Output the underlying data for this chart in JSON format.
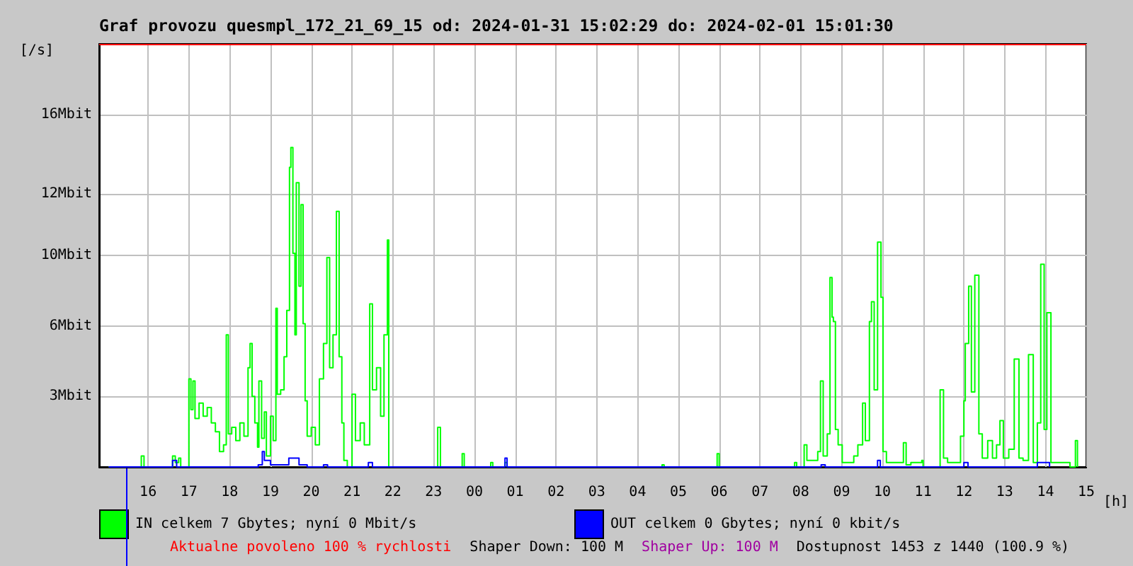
{
  "chart_data": {
    "type": "step",
    "title": "Graf provozu quesmpl_172_21_69_15 od: 2024-01-31 15:02:29 do: 2024-02-01 15:01:30",
    "xlabel": "[h]",
    "ylabel": "[/s]",
    "xlim": [
      "2024-01-31T14:48",
      "2024-02-01T15:00"
    ],
    "xticks": [
      {
        "value": "2024-01-31T16:00",
        "label": "16"
      },
      {
        "value": "2024-01-31T17:00",
        "label": "17"
      },
      {
        "value": "2024-01-31T18:00",
        "label": "18"
      },
      {
        "value": "2024-01-31T19:00",
        "label": "19"
      },
      {
        "value": "2024-01-31T20:00",
        "label": "20"
      },
      {
        "value": "2024-01-31T21:00",
        "label": "21"
      },
      {
        "value": "2024-01-31T22:00",
        "label": "22"
      },
      {
        "value": "2024-01-31T23:00",
        "label": "23"
      },
      {
        "value": "2024-02-01T00:00",
        "label": "00"
      },
      {
        "value": "2024-02-01T01:00",
        "label": "01"
      },
      {
        "value": "2024-02-01T02:00",
        "label": "02"
      },
      {
        "value": "2024-02-01T03:00",
        "label": "03"
      },
      {
        "value": "2024-02-01T04:00",
        "label": "04"
      },
      {
        "value": "2024-02-01T05:00",
        "label": "05"
      },
      {
        "value": "2024-02-01T06:00",
        "label": "06"
      },
      {
        "value": "2024-02-01T07:00",
        "label": "07"
      },
      {
        "value": "2024-02-01T08:00",
        "label": "08"
      },
      {
        "value": "2024-02-01T09:00",
        "label": "09"
      },
      {
        "value": "2024-02-01T10:00",
        "label": "10"
      },
      {
        "value": "2024-02-01T11:00",
        "label": "11"
      },
      {
        "value": "2024-02-01T12:00",
        "label": "12"
      },
      {
        "value": "2024-02-01T13:00",
        "label": "13"
      },
      {
        "value": "2024-02-01T14:00",
        "label": "14"
      },
      {
        "value": "2024-02-01T15:00",
        "label": "15"
      }
    ],
    "ylim": [
      0,
      19.2
    ],
    "yticks": [
      {
        "value": 3.2,
        "label": "3Mbit"
      },
      {
        "value": 6.4,
        "label": "6Mbit"
      },
      {
        "value": 9.6,
        "label": "10Mbit"
      },
      {
        "value": 12.4,
        "label": "12Mbit"
      },
      {
        "value": 16,
        "label": "16Mbit"
      }
    ],
    "grid": true,
    "legend": "bottom",
    "series": [
      {
        "name": "IN celkem 7 Gbytes; nyní 0 Mbit/s",
        "color": "#00ff00",
        "x": [
          "2024-01-31T15:02",
          "2024-01-31T15:50",
          "2024-01-31T15:54",
          "2024-01-31T16:36",
          "2024-01-31T16:40",
          "2024-01-31T16:45",
          "2024-01-31T16:48",
          "2024-01-31T17:00",
          "2024-01-31T17:03",
          "2024-01-31T17:06",
          "2024-01-31T17:09",
          "2024-01-31T17:15",
          "2024-01-31T17:21",
          "2024-01-31T17:27",
          "2024-01-31T17:33",
          "2024-01-31T17:39",
          "2024-01-31T17:45",
          "2024-01-31T17:51",
          "2024-01-31T17:55",
          "2024-01-31T17:58",
          "2024-01-31T18:03",
          "2024-01-31T18:09",
          "2024-01-31T18:15",
          "2024-01-31T18:21",
          "2024-01-31T18:27",
          "2024-01-31T18:30",
          "2024-01-31T18:33",
          "2024-01-31T18:37",
          "2024-01-31T18:41",
          "2024-01-31T18:43",
          "2024-01-31T18:47",
          "2024-01-31T18:51",
          "2024-01-31T18:54",
          "2024-01-31T19:00",
          "2024-01-31T19:04",
          "2024-01-31T19:08",
          "2024-01-31T19:10",
          "2024-01-31T19:15",
          "2024-01-31T19:20",
          "2024-01-31T19:24",
          "2024-01-31T19:28",
          "2024-01-31T19:30",
          "2024-01-31T19:33",
          "2024-01-31T19:36",
          "2024-01-31T19:38",
          "2024-01-31T19:42",
          "2024-01-31T19:45",
          "2024-01-31T19:48",
          "2024-01-31T19:51",
          "2024-01-31T19:54",
          "2024-01-31T20:00",
          "2024-01-31T20:06",
          "2024-01-31T20:12",
          "2024-01-31T20:18",
          "2024-01-31T20:23",
          "2024-01-31T20:27",
          "2024-01-31T20:32",
          "2024-01-31T20:37",
          "2024-01-31T20:41",
          "2024-01-31T20:45",
          "2024-01-31T20:48",
          "2024-01-31T20:53",
          "2024-01-31T21:00",
          "2024-01-31T21:05",
          "2024-01-31T21:12",
          "2024-01-31T21:18",
          "2024-01-31T21:26",
          "2024-01-31T21:30",
          "2024-01-31T21:36",
          "2024-01-31T21:42",
          "2024-01-31T21:47",
          "2024-01-31T21:52",
          "2024-01-31T21:54",
          "2024-01-31T23:06",
          "2024-01-31T23:10",
          "2024-01-31T23:42",
          "2024-01-31T23:45",
          "2024-02-01T00:24",
          "2024-02-01T00:27",
          "2024-02-01T00:45",
          "2024-02-01T00:48",
          "2024-02-01T04:36",
          "2024-02-01T04:39",
          "2024-02-01T05:57",
          "2024-02-01T06:00",
          "2024-02-01T07:51",
          "2024-02-01T07:54",
          "2024-02-01T08:05",
          "2024-02-01T08:09",
          "2024-02-01T08:14",
          "2024-02-01T08:25",
          "2024-02-01T08:29",
          "2024-02-01T08:33",
          "2024-02-01T08:39",
          "2024-02-01T08:43",
          "2024-02-01T08:46",
          "2024-02-01T08:48",
          "2024-02-01T08:51",
          "2024-02-01T08:55",
          "2024-02-01T09:01",
          "2024-02-01T09:18",
          "2024-02-01T09:24",
          "2024-02-01T09:31",
          "2024-02-01T09:35",
          "2024-02-01T09:41",
          "2024-02-01T09:44",
          "2024-02-01T09:48",
          "2024-02-01T09:53",
          "2024-02-01T09:58",
          "2024-02-01T10:01",
          "2024-02-01T10:06",
          "2024-02-01T10:31",
          "2024-02-01T10:35",
          "2024-02-01T10:42",
          "2024-02-01T10:58",
          "2024-02-01T11:00",
          "2024-02-01T11:25",
          "2024-02-01T11:30",
          "2024-02-01T11:36",
          "2024-02-01T11:55",
          "2024-02-01T12:00",
          "2024-02-01T12:02",
          "2024-02-01T12:07",
          "2024-02-01T12:11",
          "2024-02-01T12:16",
          "2024-02-01T12:22",
          "2024-02-01T12:27",
          "2024-02-01T12:35",
          "2024-02-01T12:42",
          "2024-02-01T12:48",
          "2024-02-01T12:53",
          "2024-02-01T12:58",
          "2024-02-01T13:06",
          "2024-02-01T13:14",
          "2024-02-01T13:21",
          "2024-02-01T13:27",
          "2024-02-01T13:35",
          "2024-02-01T13:42",
          "2024-02-01T13:48",
          "2024-02-01T13:53",
          "2024-02-01T13:58",
          "2024-02-01T14:02",
          "2024-02-01T14:08",
          "2024-02-01T14:36",
          "2024-02-01T14:44",
          "2024-02-01T14:47"
        ],
        "values": [
          0,
          0.5,
          0,
          0.5,
          0.2,
          0.4,
          0,
          4.0,
          2.6,
          3.9,
          2.2,
          2.9,
          2.3,
          2.7,
          2.0,
          1.6,
          0.7,
          1.0,
          6.0,
          1.5,
          1.8,
          1.2,
          2.0,
          1.4,
          4.5,
          5.6,
          3.2,
          2.0,
          0.9,
          3.9,
          1.3,
          2.5,
          0.5,
          2.3,
          1.2,
          7.2,
          3.3,
          3.5,
          5.0,
          7.1,
          13.6,
          14.5,
          9.7,
          6.0,
          12.9,
          8.2,
          11.9,
          6.5,
          3.0,
          1.4,
          1.8,
          1.0,
          4.0,
          5.6,
          9.5,
          4.5,
          6.0,
          11.6,
          5.0,
          2.0,
          0.3,
          0,
          3.3,
          1.2,
          2.0,
          1.0,
          7.4,
          3.5,
          4.5,
          2.3,
          6.0,
          10.3,
          0,
          1.8,
          0,
          0.6,
          0,
          0.2,
          0,
          0.2,
          0,
          0.1,
          0,
          0.6,
          0,
          0.2,
          0,
          1.0,
          0.3,
          0.3,
          0.7,
          3.9,
          0.5,
          1.5,
          8.6,
          6.8,
          6.6,
          1.7,
          1.0,
          0.2,
          0.5,
          1.0,
          2.9,
          1.2,
          6.6,
          7.5,
          3.5,
          10.2,
          7.7,
          0.7,
          0.2,
          1.1,
          0.1,
          0.2,
          0.3,
          0,
          3.5,
          0.4,
          0.2,
          1.4,
          3.0,
          5.6,
          8.2,
          3.4,
          8.7,
          1.5,
          0.4,
          1.2,
          0.4,
          1.0,
          2.1,
          0.4,
          0.8,
          4.9,
          0.4,
          0.3,
          5.1,
          0.2,
          2.0,
          9.2,
          1.7,
          7.0,
          0.2,
          0,
          1.2,
          0
        ]
      },
      {
        "name": "OUT celkem 0 Gbytes; nyní 0 kbit/s",
        "color": "#0000ff",
        "x": [
          "2024-01-31T15:02",
          "2024-01-31T16:36",
          "2024-01-31T16:42",
          "2024-01-31T18:42",
          "2024-01-31T18:48",
          "2024-01-31T18:51",
          "2024-01-31T19:00",
          "2024-01-31T19:27",
          "2024-01-31T19:42",
          "2024-01-31T19:54",
          "2024-01-31T20:18",
          "2024-01-31T20:24",
          "2024-01-31T21:24",
          "2024-01-31T21:30",
          "2024-02-01T00:45",
          "2024-02-01T00:48",
          "2024-02-01T08:30",
          "2024-02-01T08:36",
          "2024-02-01T09:53",
          "2024-02-01T09:57",
          "2024-02-01T12:00",
          "2024-02-01T12:06",
          "2024-02-01T13:48",
          "2024-02-01T14:06"
        ],
        "values": [
          0,
          0.3,
          0,
          0.1,
          0.7,
          0.3,
          0.1,
          0.4,
          0.1,
          0,
          0.1,
          0,
          0.2,
          0,
          0.4,
          0,
          0.1,
          0,
          0.3,
          0,
          0.2,
          0,
          0.2,
          0
        ]
      }
    ],
    "ref_lines": [
      {
        "axis": "y",
        "value": 19.2,
        "color": "#ff0000"
      }
    ],
    "annotations": [
      "Aktualne povoleno 100 % rychlosti",
      "Shaper Down: 100 M",
      "Shaper Up: 100 M",
      "Dostupnost 1453 z 1440 (100.9 %)"
    ]
  }
}
